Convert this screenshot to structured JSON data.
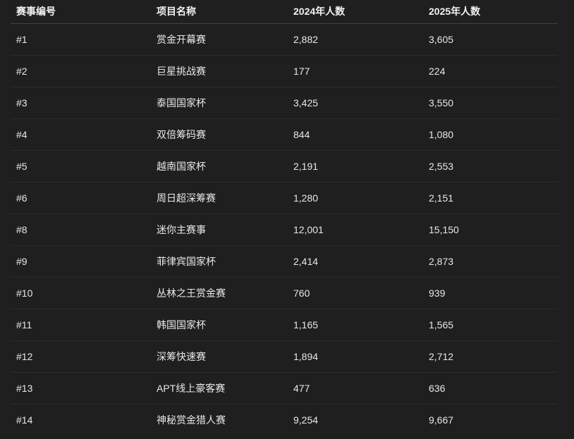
{
  "table": {
    "headers": [
      "赛事编号",
      "项目名称",
      "2024年人数",
      "2025年人数"
    ],
    "rows": [
      [
        "#1",
        "赏金开幕赛",
        "2,882",
        "3,605"
      ],
      [
        "#2",
        "巨星挑战赛",
        "177",
        "224"
      ],
      [
        "#3",
        "泰国国家杯",
        "3,425",
        "3,550"
      ],
      [
        "#4",
        "双倍筹码赛",
        "844",
        "1,080"
      ],
      [
        "#5",
        "越南国家杯",
        "2,191",
        "2,553"
      ],
      [
        "#6",
        "周日超深筹赛",
        "1,280",
        "2,151"
      ],
      [
        "#8",
        "迷你主赛事",
        "12,001",
        "15,150"
      ],
      [
        "#9",
        "菲律宾国家杯",
        "2,414",
        "2,873"
      ],
      [
        "#10",
        "丛林之王赏金赛",
        "760",
        "939"
      ],
      [
        "#11",
        "韩国国家杯",
        "1,165",
        "1,565"
      ],
      [
        "#12",
        "深筹快速赛",
        "1,894",
        "2,712"
      ],
      [
        "#13",
        "APT线上豪客赛",
        "477",
        "636"
      ],
      [
        "#14",
        "神秘赏金猎人赛",
        "9,254",
        "9,667"
      ]
    ]
  }
}
